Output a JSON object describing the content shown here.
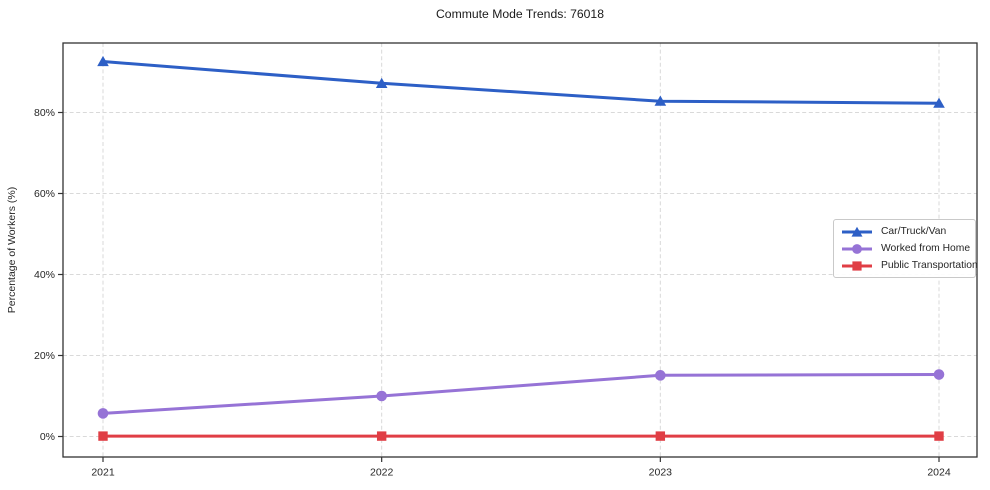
{
  "chart_data": {
    "type": "line",
    "title": "Commute Mode Trends: 76018",
    "xlabel": "",
    "ylabel": "Percentage of Workers (%)",
    "categories": [
      "2021",
      "2022",
      "2023",
      "2024"
    ],
    "series": [
      {
        "name": "Car/Truck/Van",
        "slug": "car-truck-van",
        "color": "#2d5fc6",
        "marker": "triangle-up",
        "values": [
          92.6,
          87.2,
          82.8,
          82.3
        ]
      },
      {
        "name": "Worked from Home",
        "slug": "worked-from-home",
        "color": "#9673d6",
        "marker": "circle",
        "values": [
          5.7,
          10.0,
          15.1,
          15.3
        ]
      },
      {
        "name": "Public Transportation",
        "slug": "public-transportation",
        "color": "#e03e45",
        "marker": "square",
        "values": [
          0.1,
          0.1,
          0.1,
          0.1
        ]
      }
    ],
    "yticks": [
      0,
      20,
      40,
      60,
      80
    ],
    "ytick_labels": [
      "0%",
      "20%",
      "40%",
      "60%",
      "80%"
    ],
    "ylim": [
      -5,
      97
    ],
    "grid": true,
    "legend": {
      "position": "center-right",
      "entries": [
        "Car/Truck/Van",
        "Worked from Home",
        "Public Transportation"
      ]
    },
    "style": {
      "grid_color": "#d9d9d9",
      "axis_color": "#333333",
      "text_color": "#262626",
      "background": "#ffffff"
    }
  }
}
